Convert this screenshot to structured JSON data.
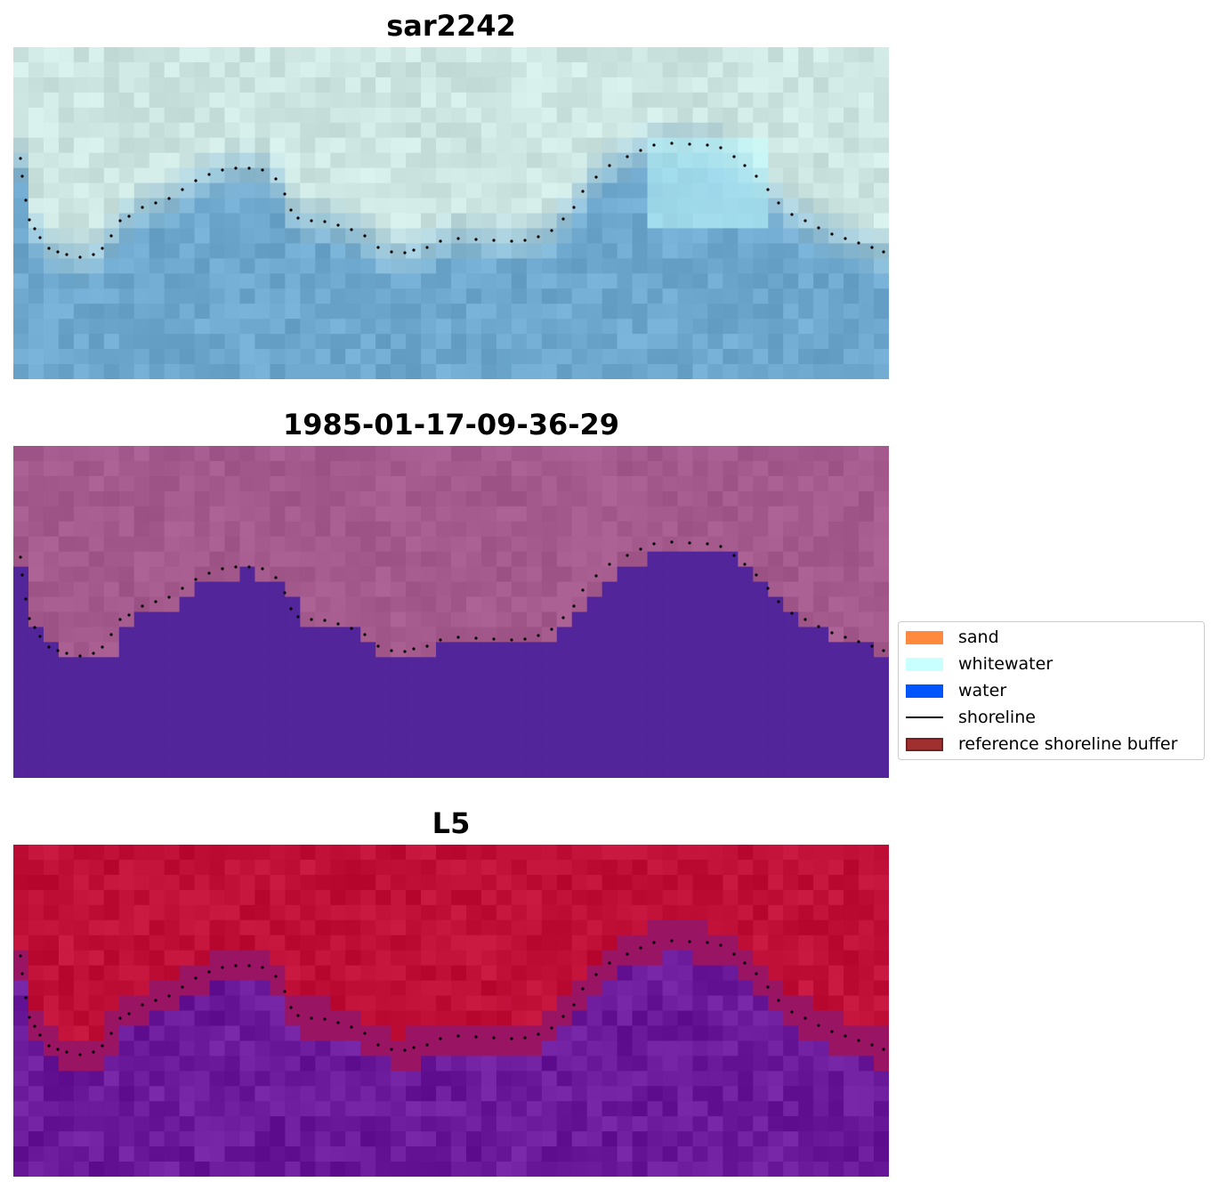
{
  "panels": [
    {
      "title": "sar2242",
      "style": "rgb"
    },
    {
      "title": "1985-01-17-09-36-29",
      "style": "classified"
    },
    {
      "title": "L5",
      "style": "index"
    }
  ],
  "legend": {
    "items": [
      {
        "label": "sand",
        "color": "#ff8a3d",
        "kind": "patch"
      },
      {
        "label": "whitewater",
        "color": "#c8ffff",
        "kind": "patch"
      },
      {
        "label": "water",
        "color": "#0055ff",
        "kind": "patch"
      },
      {
        "label": "shoreline",
        "color": "#000000",
        "kind": "line"
      },
      {
        "label": "reference shoreline buffer",
        "color": "#a03030",
        "kind": "patch"
      }
    ]
  },
  "colors": {
    "land_classified": "#a45a8d",
    "water_classified": "#52259a",
    "index_high": "#c01038",
    "index_low": "#6a1a9a",
    "shoreline_points": "#000000"
  }
}
